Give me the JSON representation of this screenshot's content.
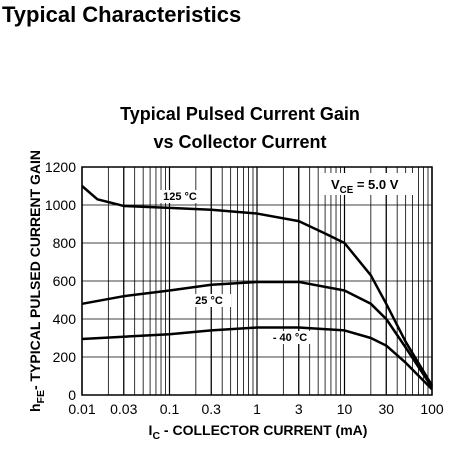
{
  "header": "Typical Characteristics",
  "chart_data": {
    "type": "line",
    "title": [
      "Typical Pulsed Current Gain",
      "vs Collector Current"
    ],
    "y_label": {
      "main": "h",
      "sub": "FE",
      "rest": "- TYPICAL PULSED CURRENT GAIN"
    },
    "x_label": {
      "main": "I",
      "sub": "C",
      "rest": " - COLLECTOR CURRENT  (mA)"
    },
    "annotation": {
      "main": "V",
      "sub": "CE",
      "rest": " = 5.0 V"
    },
    "x_log": true,
    "grid": true,
    "minor_grid": true,
    "color": "#000000",
    "xlim": [
      0.01,
      100
    ],
    "xticks": [
      0.01,
      0.03,
      0.1,
      0.3,
      1,
      3,
      10,
      30,
      100
    ],
    "ylim": [
      0,
      1200
    ],
    "yticks": [
      0,
      200,
      400,
      600,
      800,
      1000,
      1200
    ],
    "series": [
      {
        "name": "125 °C",
        "color": "#000000",
        "x": [
          0.01,
          0.015,
          0.03,
          0.1,
          0.3,
          1,
          3,
          6,
          10,
          20,
          30,
          50,
          100
        ],
        "values": [
          1100,
          1030,
          995,
          985,
          975,
          955,
          915,
          850,
          800,
          630,
          480,
          280,
          50
        ]
      },
      {
        "name": "25 °C",
        "color": "#000000",
        "x": [
          0.01,
          0.03,
          0.1,
          0.3,
          1,
          3,
          10,
          20,
          30,
          50,
          100
        ],
        "values": [
          480,
          520,
          550,
          580,
          595,
          595,
          550,
          480,
          400,
          250,
          40
        ]
      },
      {
        "name": "- 40 °C",
        "color": "#000000",
        "x": [
          0.01,
          0.1,
          0.3,
          1,
          3,
          10,
          20,
          30,
          50,
          100
        ],
        "values": [
          295,
          320,
          340,
          355,
          355,
          340,
          300,
          260,
          170,
          30
        ]
      }
    ]
  }
}
